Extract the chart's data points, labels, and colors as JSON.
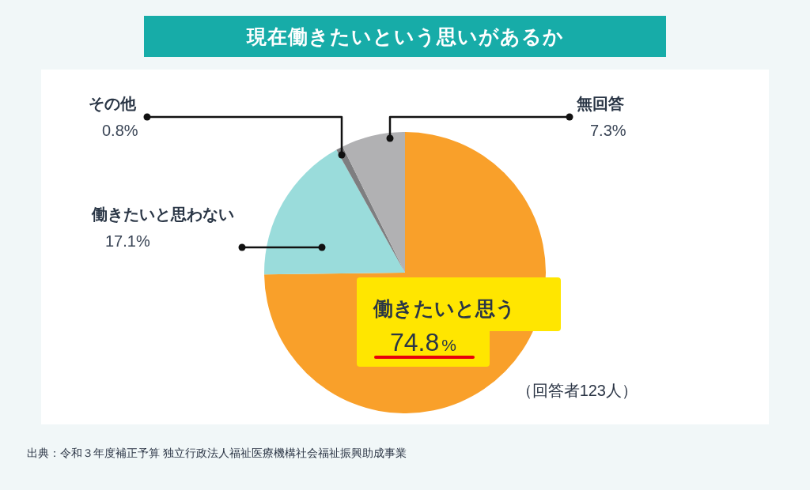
{
  "chart_data": {
    "type": "pie",
    "title": "現在働きたいという思いがあるか",
    "categories": [
      "働きたいと思う",
      "働きたいと思わない",
      "その他",
      "無回答"
    ],
    "values": [
      74.8,
      17.1,
      0.8,
      7.3
    ],
    "colors": [
      "#f9a02a",
      "#9adcdb",
      "#7e7e80",
      "#b1b1b3"
    ],
    "value_labels": [
      "74.8%",
      "17.1%",
      "0.8%",
      "7.3%"
    ],
    "annotations": [
      "（回答者123人）",
      "出典：令和３年度補正予算 独立行政法人福祉医療機構社会福祉振興助成事業"
    ]
  }
}
